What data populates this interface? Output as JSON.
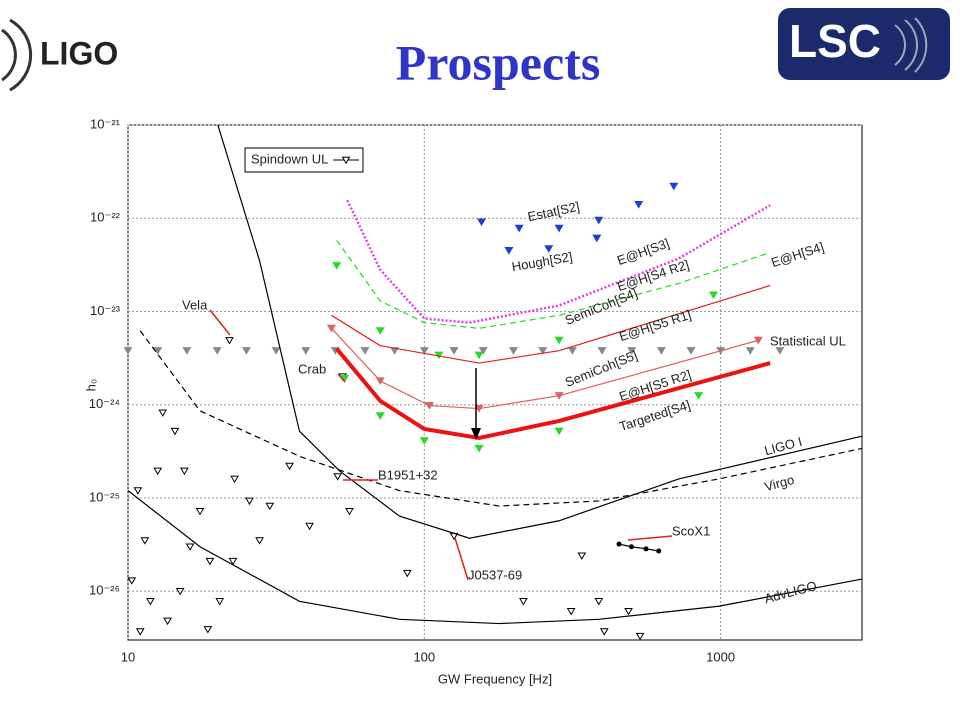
{
  "header": {
    "title": "Prospects",
    "left_logo": "LIGO",
    "right_logo": "LSC"
  },
  "chart_data": {
    "type": "line",
    "x_label": "GW Frequency [Hz]",
    "y_label": "h₀",
    "xscale": "log",
    "yscale": "log",
    "grid": true,
    "xlim": [
      10,
      3000
    ],
    "ylim": [
      3e-27,
      1e-21
    ],
    "xticks": [
      10,
      100,
      1000
    ],
    "yticks": [
      {
        "value": 1e-21,
        "label": "10⁻²¹"
      },
      {
        "value": 1e-22,
        "label": "10⁻²²"
      },
      {
        "value": 1e-23,
        "label": "10⁻²³"
      },
      {
        "value": 1e-24,
        "label": "10⁻²⁴"
      },
      {
        "value": 1e-25,
        "label": "10⁻²⁵"
      },
      {
        "value": 1e-26,
        "label": "10⁻²⁶"
      }
    ],
    "legend": "top-left",
    "series": [
      {
        "name": "Spindown UL",
        "color": "#000000",
        "marker": "hollow-triangle",
        "line": "none",
        "x": [
          22,
          53,
          51,
          126,
          13.1,
          14.4,
          10.8,
          11.4,
          10.3,
          11.9,
          11.0,
          15.5,
          17.5,
          18.9,
          22.9,
          25.7,
          30.1,
          35.1,
          41.0,
          22.6,
          18.6,
          13.6,
          55.9,
          87.6,
          340,
          388,
          313,
          405,
          535,
          489,
          216,
          16.2,
          12.6,
          15.0,
          20.4,
          27.8
        ],
        "values": [
          4.9e-24,
          2e-24,
          1.7e-25,
          3.9e-26,
          8.2e-25,
          5.2e-25,
          1.2e-25,
          3.5e-26,
          1.3e-26,
          7.8e-27,
          3.7e-27,
          1.95e-25,
          7.2e-26,
          2.1e-26,
          1.6e-25,
          9.3e-26,
          8.2e-26,
          2.2e-25,
          5e-26,
          2.1e-26,
          3.9e-27,
          4.8e-27,
          7.2e-26,
          1.56e-26,
          2.4e-26,
          7.8e-27,
          6.1e-27,
          3.7e-27,
          3.3e-27,
          6.1e-27,
          7.8e-27,
          3e-26,
          1.95e-25,
          1e-26,
          7.8e-27,
          3.5e-26
        ]
      },
      {
        "name": "Statistical UL",
        "color": "#888888",
        "marker": "triangle",
        "line": "none",
        "x": [
          10,
          12.6,
          15.8,
          20,
          25.1,
          31.6,
          39.8,
          50.1,
          63.1,
          79.4,
          100,
          126,
          158,
          200,
          251,
          316,
          398,
          501,
          631,
          794,
          1000,
          1259,
          1585
        ],
        "values": [
          3.8e-24,
          3.8e-24,
          3.8e-24,
          3.8e-24,
          3.8e-24,
          3.8e-24,
          3.8e-24,
          3.8e-24,
          3.8e-24,
          3.8e-24,
          3.8e-24,
          3.8e-24,
          3.8e-24,
          3.8e-24,
          3.8e-24,
          3.8e-24,
          3.8e-24,
          3.8e-24,
          3.8e-24,
          3.8e-24,
          3.8e-24,
          3.8e-24,
          3.8e-24
        ]
      },
      {
        "name": "Estat[S2]",
        "color": "#1a3fd6",
        "marker": "triangle",
        "line": "none",
        "x": [
          156,
          209,
          285,
          388,
          529,
          695
        ],
        "values": [
          9.1e-23,
          7.8e-23,
          7.8e-23,
          9.5e-23,
          1.4e-22,
          2.2e-22
        ]
      },
      {
        "name": "Hough[S2]",
        "color": "#1a3fd6",
        "marker": "triangle",
        "line": "none",
        "x": [
          193,
          263,
          382
        ],
        "values": [
          4.5e-23,
          4.7e-23,
          6.1e-23
        ]
      },
      {
        "name": "E@H[S3]",
        "color": "#e040e0",
        "marker": "none",
        "line": "dotted",
        "x": [
          55,
          71,
          100,
          142,
          285,
          722,
          1470
        ],
        "values": [
          1.56e-22,
          2.8e-23,
          8.4e-24,
          7.6e-24,
          1.16e-23,
          3.7e-23,
          1.38e-22
        ]
      },
      {
        "name": "E@H[S4]",
        "color": "#22dd22",
        "marker": "none",
        "line": "dashed",
        "x": [
          50.6,
          71,
          100,
          153,
          285,
          722,
          1470
        ],
        "values": [
          5.8e-23,
          1.3e-23,
          7.6e-24,
          6.6e-24,
          9.1e-24,
          2e-23,
          4.3e-23
        ]
      },
      {
        "name": "E@H[S5 R1]",
        "color": "#22dd22",
        "marker": "triangle",
        "line": "none",
        "x": [
          50.6,
          71,
          112,
          153,
          285,
          946
        ],
        "values": [
          3.1e-23,
          6.2e-24,
          3.4e-24,
          3.4e-24,
          4.9e-24,
          1.5e-23
        ]
      },
      {
        "name": "SemiCoh[S4]",
        "color": "#e02020",
        "marker": "none",
        "line": "solid",
        "x": [
          48.6,
          71,
          153,
          285,
          1470
        ],
        "values": [
          9.1e-24,
          4.3e-24,
          2.8e-24,
          3.8e-24,
          1.9e-23
        ]
      },
      {
        "name": "SemiCoh[S5]",
        "color": "#e06060",
        "marker": "triangle",
        "line": "solid",
        "x": [
          48.6,
          71,
          104,
          153,
          285,
          1340
        ],
        "values": [
          6.6e-24,
          1.8e-24,
          9.8e-25,
          9.1e-25,
          1.25e-24,
          4.9e-24
        ]
      },
      {
        "name": "E@H[S5 R2]",
        "color": "#ee1111",
        "marker": "none",
        "line": "thick",
        "x": [
          50.6,
          71,
          100,
          153,
          285,
          1470
        ],
        "values": [
          4e-24,
          1.1e-24,
          5.5e-25,
          4.4e-25,
          6.7e-25,
          2.8e-24
        ]
      },
      {
        "name": "Targeted[S4]",
        "color": "#22dd22",
        "marker": "triangle",
        "line": "none",
        "x": [
          53.8,
          71,
          100,
          153,
          285,
          843
        ],
        "values": [
          1.9e-24,
          7.6e-25,
          4.1e-25,
          3.4e-25,
          5.2e-25,
          1.25e-24
        ]
      },
      {
        "name": "LIGO I",
        "color": "#000000",
        "marker": "none",
        "line": "solid",
        "x": [
          20.1,
          27.8,
          37.9,
          51.8,
          82.4,
          142,
          285,
          722,
          3000
        ],
        "values": [
          1e-21,
          3.5e-23,
          5.2e-25,
          1.95e-25,
          6.4e-26,
          3.7e-26,
          5.7e-26,
          1.6e-25,
          4.6e-25
        ]
      },
      {
        "name": "Virgo",
        "color": "#000000",
        "marker": "none",
        "line": "dashed",
        "x": [
          11,
          17.5,
          37.9,
          82.4,
          179,
          388,
          984,
          3000
        ],
        "values": [
          6.2e-24,
          8.6e-25,
          2.8e-25,
          1.2e-25,
          8.2e-26,
          9.3e-26,
          1.6e-25,
          3.4e-25
        ]
      },
      {
        "name": "AdvLIGO",
        "color": "#000000",
        "marker": "none",
        "line": "solid",
        "x": [
          10,
          17.5,
          37.9,
          82.4,
          179,
          388,
          984,
          3000
        ],
        "values": [
          1.2e-25,
          3e-26,
          7.8e-27,
          5e-27,
          4.5e-27,
          5e-27,
          6.9e-27,
          1.35e-26
        ]
      },
      {
        "color": "#000000",
        "marker": "dot",
        "line": "solid",
        "x": [
          454,
          500,
          560,
          618
        ],
        "values": [
          3.2e-26,
          3e-26,
          2.85e-26,
          2.7e-26
        ]
      }
    ],
    "annotations": [
      "Vela",
      "Crab",
      "B1951+32",
      "J0537-69",
      "ScoX1",
      "E@H[S4 R2]"
    ]
  }
}
